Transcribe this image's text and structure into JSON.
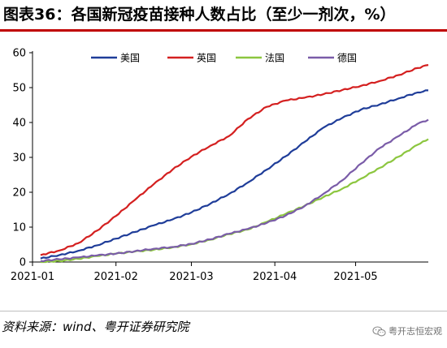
{
  "figure": {
    "title": "图表36：各国新冠疫苗接种人数占比（至少一剂次，%）",
    "source": "资料来源：wind、粤开证券研究院",
    "watermark": "粤开志恒宏观"
  },
  "chart_data": {
    "type": "line",
    "title": "",
    "xlabel": "",
    "ylabel": "",
    "ylim": [
      0,
      60
    ],
    "yticks": [
      0,
      10,
      20,
      30,
      40,
      50,
      60
    ],
    "xlim": [
      "2021-01-01",
      "2021-05-28"
    ],
    "xticks": [
      "2021-01",
      "2021-02",
      "2021-03",
      "2021-04",
      "2021-05"
    ],
    "grid": false,
    "legend": "top",
    "series": [
      {
        "name": "美国",
        "color": "#1f3d99",
        "points": [
          [
            "2021-01-04",
            1.0
          ],
          [
            "2021-01-11",
            2.0
          ],
          [
            "2021-01-18",
            3.2
          ],
          [
            "2021-01-25",
            4.8
          ],
          [
            "2021-02-01",
            6.7
          ],
          [
            "2021-02-08",
            8.6
          ],
          [
            "2021-02-15",
            10.5
          ],
          [
            "2021-02-22",
            12.2
          ],
          [
            "2021-03-01",
            14.2
          ],
          [
            "2021-03-08",
            16.7
          ],
          [
            "2021-03-15",
            19.5
          ],
          [
            "2021-03-22",
            22.8
          ],
          [
            "2021-03-29",
            26.5
          ],
          [
            "2021-04-05",
            30.3
          ],
          [
            "2021-04-12",
            34.4
          ],
          [
            "2021-04-19",
            38.5
          ],
          [
            "2021-04-26",
            41.3
          ],
          [
            "2021-05-03",
            43.7
          ],
          [
            "2021-05-10",
            45.2
          ],
          [
            "2021-05-17",
            46.9
          ],
          [
            "2021-05-24",
            48.6
          ],
          [
            "2021-05-28",
            49.2
          ]
        ]
      },
      {
        "name": "英国",
        "color": "#d42020",
        "points": [
          [
            "2021-01-04",
            2.0
          ],
          [
            "2021-01-11",
            3.3
          ],
          [
            "2021-01-18",
            5.4
          ],
          [
            "2021-01-25",
            9.0
          ],
          [
            "2021-02-01",
            13.2
          ],
          [
            "2021-02-08",
            17.8
          ],
          [
            "2021-02-15",
            22.3
          ],
          [
            "2021-02-22",
            26.5
          ],
          [
            "2021-03-01",
            30.2
          ],
          [
            "2021-03-08",
            33.3
          ],
          [
            "2021-03-15",
            36.1
          ],
          [
            "2021-03-22",
            41.0
          ],
          [
            "2021-03-29",
            44.5
          ],
          [
            "2021-04-05",
            46.3
          ],
          [
            "2021-04-12",
            47.1
          ],
          [
            "2021-04-19",
            48.1
          ],
          [
            "2021-04-26",
            49.3
          ],
          [
            "2021-05-03",
            50.5
          ],
          [
            "2021-05-10",
            51.9
          ],
          [
            "2021-05-17",
            53.6
          ],
          [
            "2021-05-24",
            55.6
          ],
          [
            "2021-05-28",
            56.5
          ]
        ]
      },
      {
        "name": "法国",
        "color": "#8cc63f",
        "points": [
          [
            "2021-01-04",
            0.0
          ],
          [
            "2021-01-11",
            0.3
          ],
          [
            "2021-01-18",
            0.9
          ],
          [
            "2021-01-25",
            1.7
          ],
          [
            "2021-02-01",
            2.4
          ],
          [
            "2021-02-08",
            3.0
          ],
          [
            "2021-02-15",
            3.5
          ],
          [
            "2021-02-22",
            4.2
          ],
          [
            "2021-03-01",
            5.1
          ],
          [
            "2021-03-08",
            6.4
          ],
          [
            "2021-03-15",
            8.0
          ],
          [
            "2021-03-22",
            9.3
          ],
          [
            "2021-03-29",
            11.5
          ],
          [
            "2021-04-05",
            13.8
          ],
          [
            "2021-04-12",
            16.1
          ],
          [
            "2021-04-19",
            18.6
          ],
          [
            "2021-04-26",
            21.0
          ],
          [
            "2021-05-03",
            23.9
          ],
          [
            "2021-05-10",
            27.0
          ],
          [
            "2021-05-17",
            30.2
          ],
          [
            "2021-05-24",
            33.6
          ],
          [
            "2021-05-28",
            35.2
          ]
        ]
      },
      {
        "name": "德国",
        "color": "#7a5ca8",
        "points": [
          [
            "2021-01-04",
            0.3
          ],
          [
            "2021-01-11",
            0.8
          ],
          [
            "2021-01-18",
            1.3
          ],
          [
            "2021-01-25",
            1.9
          ],
          [
            "2021-02-01",
            2.4
          ],
          [
            "2021-02-08",
            3.1
          ],
          [
            "2021-02-15",
            3.8
          ],
          [
            "2021-02-22",
            4.3
          ],
          [
            "2021-03-01",
            5.2
          ],
          [
            "2021-03-08",
            6.5
          ],
          [
            "2021-03-15",
            8.1
          ],
          [
            "2021-03-22",
            9.5
          ],
          [
            "2021-03-29",
            11.2
          ],
          [
            "2021-04-05",
            13.3
          ],
          [
            "2021-04-12",
            16.0
          ],
          [
            "2021-04-19",
            19.5
          ],
          [
            "2021-04-26",
            23.4
          ],
          [
            "2021-05-03",
            28.2
          ],
          [
            "2021-05-10",
            32.7
          ],
          [
            "2021-05-17",
            36.1
          ],
          [
            "2021-05-24",
            39.6
          ],
          [
            "2021-05-28",
            40.8
          ]
        ]
      }
    ]
  }
}
